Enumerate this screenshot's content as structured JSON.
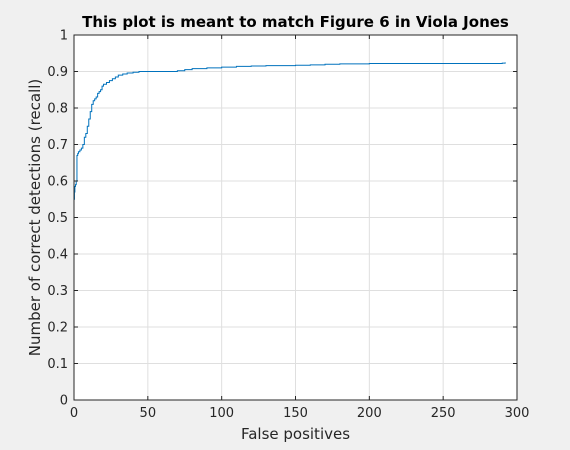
{
  "chart_data": {
    "type": "line",
    "title": "This plot is meant to match Figure 6 in Viola Jones",
    "xlabel": "False positives",
    "ylabel": "Number of correct detections (recall)",
    "xlim": [
      0,
      300
    ],
    "ylim": [
      0,
      1
    ],
    "xticks": [
      "0",
      "50",
      "100",
      "150",
      "200",
      "250",
      "300"
    ],
    "yticks": [
      "0",
      "0.1",
      "0.2",
      "0.3",
      "0.4",
      "0.5",
      "0.6",
      "0.7",
      "0.8",
      "0.9",
      "1"
    ],
    "grid": true,
    "line_color": "#0072bd",
    "series": [
      {
        "x": [
          0,
          0,
          0,
          0.3,
          0.6,
          1,
          1.5,
          2,
          2.5,
          3,
          4,
          5,
          6,
          7,
          8,
          9,
          10,
          11,
          12,
          13,
          14,
          15,
          16,
          17,
          18,
          19,
          20,
          22,
          24,
          26,
          28,
          30,
          33,
          36,
          40,
          44,
          50,
          60,
          70,
          75,
          80,
          90,
          100,
          110,
          120,
          130,
          150,
          160,
          170,
          180,
          200,
          250,
          280,
          290,
          292
        ],
        "y": [
          0,
          0.3,
          0.55,
          0.57,
          0.585,
          0.59,
          0.6,
          0.67,
          0.675,
          0.68,
          0.685,
          0.69,
          0.7,
          0.72,
          0.73,
          0.75,
          0.77,
          0.79,
          0.81,
          0.82,
          0.825,
          0.83,
          0.84,
          0.845,
          0.85,
          0.86,
          0.865,
          0.87,
          0.875,
          0.88,
          0.885,
          0.89,
          0.893,
          0.896,
          0.898,
          0.9,
          0.9,
          0.9,
          0.902,
          0.905,
          0.908,
          0.91,
          0.912,
          0.914,
          0.915,
          0.916,
          0.917,
          0.918,
          0.92,
          0.921,
          0.922,
          0.922,
          0.922,
          0.923,
          0.925
        ]
      }
    ]
  }
}
